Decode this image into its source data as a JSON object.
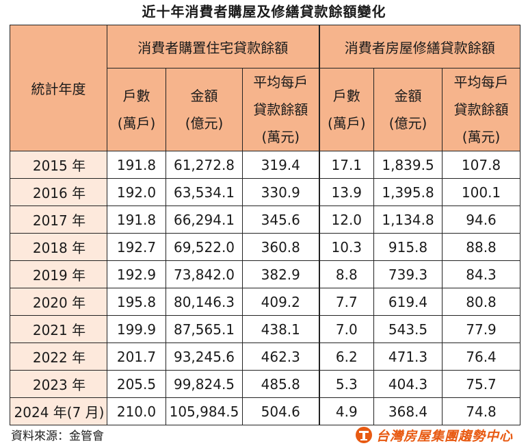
{
  "title": "近十年消費者購屋及修繕貸款餘額變化",
  "header": {
    "year_label": "統計年度",
    "group1": "消費者購置住宅貸款餘額",
    "group2": "消費者房屋修繕貸款餘額",
    "col_households": [
      "戶數",
      "(萬戶)"
    ],
    "col_amount": [
      "金額",
      "(億元)"
    ],
    "col_average": [
      "平均每戶",
      "貸款餘額",
      "(萬元)"
    ]
  },
  "rows": [
    {
      "year": "2015 年",
      "v": [
        "191.8",
        "61,272.8",
        "319.4",
        "17.1",
        "1,839.5",
        "107.8"
      ]
    },
    {
      "year": "2016 年",
      "v": [
        "192.0",
        "63,534.1",
        "330.9",
        "13.9",
        "1,395.8",
        "100.1"
      ]
    },
    {
      "year": "2017 年",
      "v": [
        "191.8",
        "66,294.1",
        "345.6",
        "12.0",
        "1,134.8",
        "94.6"
      ]
    },
    {
      "year": "2018 年",
      "v": [
        "192.7",
        "69,522.0",
        "360.8",
        "10.3",
        "915.8",
        "88.8"
      ]
    },
    {
      "year": "2019 年",
      "v": [
        "192.9",
        "73,842.0",
        "382.9",
        "8.8",
        "739.3",
        "84.3"
      ]
    },
    {
      "year": "2020 年",
      "v": [
        "195.8",
        "80,146.3",
        "409.2",
        "7.7",
        "619.4",
        "80.8"
      ]
    },
    {
      "year": "2021 年",
      "v": [
        "199.9",
        "87,565.1",
        "438.1",
        "7.0",
        "543.5",
        "77.9"
      ]
    },
    {
      "year": "2022 年",
      "v": [
        "201.7",
        "93,245.6",
        "462.3",
        "6.2",
        "471.3",
        "76.4"
      ]
    },
    {
      "year": "2023 年",
      "v": [
        "205.5",
        "99,824.5",
        "485.8",
        "5.3",
        "404.3",
        "75.7"
      ]
    },
    {
      "year": "2024 年(7 月)",
      "v": [
        "210.0",
        "105,984.5",
        "504.6",
        "4.9",
        "368.4",
        "74.8"
      ]
    }
  ],
  "footer": {
    "source": "資料來源：金管會",
    "logo_text": "台灣房屋集團趨勢中心",
    "logo_icon": "building-logo-icon",
    "logo_color": "#e85a12"
  },
  "colors": {
    "header_bg": "#f6b48c",
    "year_bg": "#fde9dc"
  }
}
